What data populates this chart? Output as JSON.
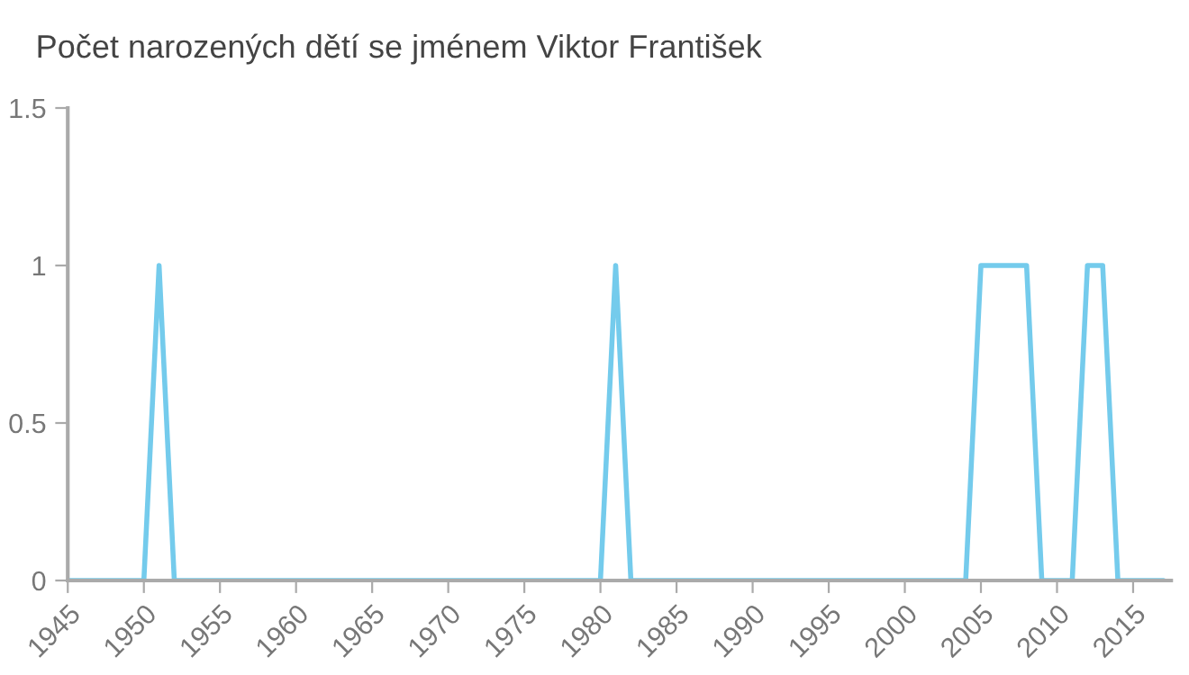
{
  "chart_data": {
    "type": "line",
    "title": "Počet narozených dětí se jménem Viktor František",
    "x": [
      1945,
      1946,
      1947,
      1948,
      1949,
      1950,
      1951,
      1952,
      1953,
      1954,
      1955,
      1956,
      1957,
      1958,
      1959,
      1960,
      1961,
      1962,
      1963,
      1964,
      1965,
      1966,
      1967,
      1968,
      1969,
      1970,
      1971,
      1972,
      1973,
      1974,
      1975,
      1976,
      1977,
      1978,
      1979,
      1980,
      1981,
      1982,
      1983,
      1984,
      1985,
      1986,
      1987,
      1988,
      1989,
      1990,
      1991,
      1992,
      1993,
      1994,
      1995,
      1996,
      1997,
      1998,
      1999,
      2000,
      2001,
      2002,
      2003,
      2004,
      2005,
      2006,
      2007,
      2008,
      2009,
      2010,
      2011,
      2012,
      2013,
      2014,
      2015,
      2016,
      2017
    ],
    "series": [
      {
        "color": "#74cbec",
        "values": [
          0,
          0,
          0,
          0,
          0,
          0,
          1,
          0,
          0,
          0,
          0,
          0,
          0,
          0,
          0,
          0,
          0,
          0,
          0,
          0,
          0,
          0,
          0,
          0,
          0,
          0,
          0,
          0,
          0,
          0,
          0,
          0,
          0,
          0,
          0,
          0,
          1,
          0,
          0,
          0,
          0,
          0,
          0,
          0,
          0,
          0,
          0,
          0,
          0,
          0,
          0,
          0,
          0,
          0,
          0,
          0,
          0,
          0,
          0,
          0,
          1,
          1,
          1,
          1,
          0,
          0,
          0,
          1,
          1,
          0,
          0,
          0,
          0
        ]
      }
    ],
    "xlim": [
      1945,
      2017.5
    ],
    "xticks": [
      1945,
      1950,
      1955,
      1960,
      1965,
      1970,
      1975,
      1980,
      1985,
      1990,
      1995,
      2000,
      2005,
      2010,
      2015
    ],
    "ylim": [
      0,
      1.5
    ],
    "yticks": [
      0,
      0.5,
      1,
      1.5
    ],
    "grid": false,
    "legend": false,
    "marker": "none",
    "line_style": "solid"
  }
}
